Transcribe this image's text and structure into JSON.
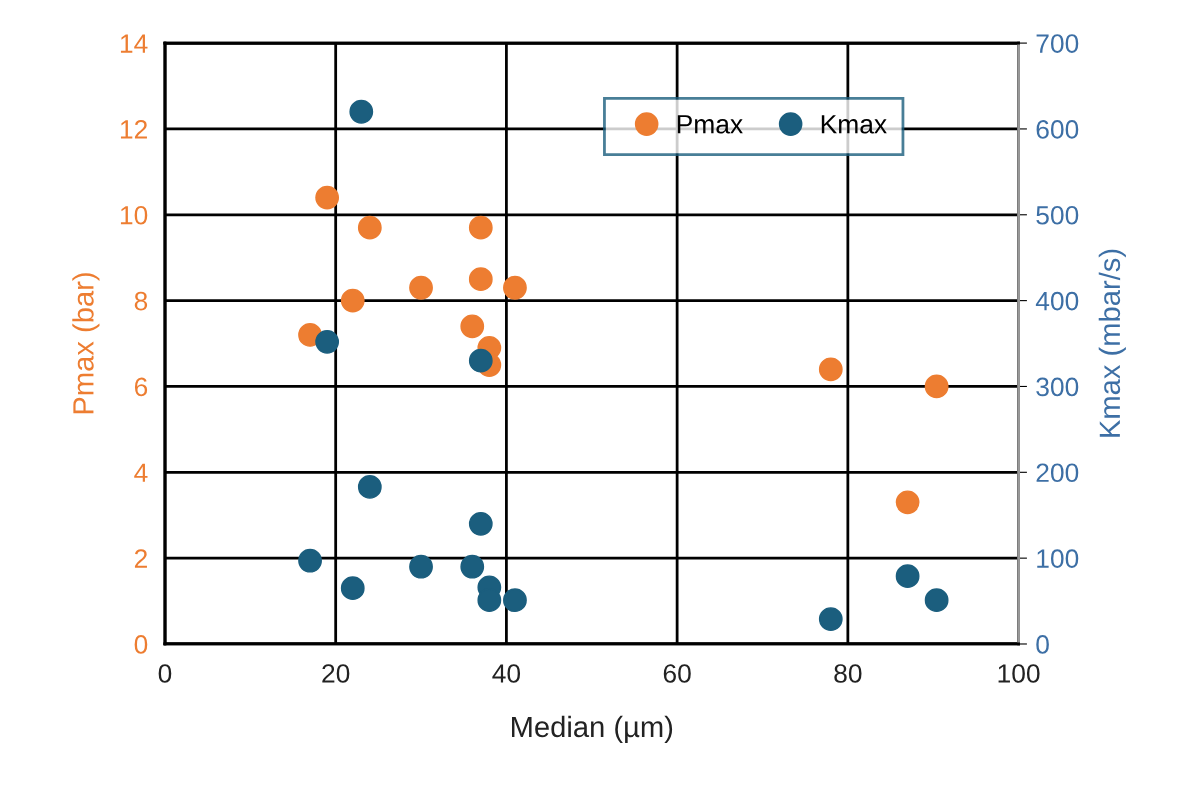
{
  "chart_data": {
    "type": "scatter",
    "xlabel": "Median (µm)",
    "ylabel": "Pmax (bar)",
    "y2label": "Kmax (mbar/s)",
    "xlim": [
      0,
      100
    ],
    "xticks": [
      0,
      20,
      40,
      60,
      80,
      100
    ],
    "ylim": [
      0,
      14
    ],
    "yticks": [
      0,
      2,
      4,
      6,
      8,
      10,
      12,
      14
    ],
    "y2lim": [
      0,
      700
    ],
    "y2ticks": [
      0,
      100,
      200,
      300,
      400,
      500,
      600,
      700
    ],
    "grid": true,
    "legend": "top right",
    "marker": "circle",
    "series": [
      {
        "name": "Pmax",
        "color": "#ed7d31",
        "x": [
          17,
          19,
          22,
          24,
          30,
          36,
          37,
          37,
          38,
          38,
          41,
          78,
          87,
          90.4
        ],
        "values": [
          7.2,
          10.4,
          8.0,
          9.7,
          8.3,
          7.4,
          9.7,
          8.5,
          6.9,
          6.5,
          8.3,
          6.4,
          3.3,
          6.0
        ]
      },
      {
        "name": "Kmax",
        "color": "#1b5e7e",
        "axis": "y2",
        "x": [
          23,
          19,
          37,
          24,
          37,
          17,
          22,
          30,
          36,
          38,
          38,
          41,
          78,
          87,
          90.4
        ],
        "values": [
          620,
          352,
          330,
          183,
          140,
          97,
          65,
          90,
          90,
          66,
          51,
          51,
          29,
          79,
          51
        ]
      }
    ]
  }
}
